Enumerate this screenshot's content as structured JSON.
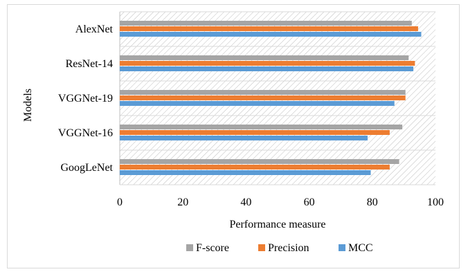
{
  "chart_data": {
    "type": "bar",
    "orientation": "horizontal",
    "title": "",
    "xlabel": "Performance measure",
    "ylabel": "Models",
    "xlim": [
      0,
      100
    ],
    "x_ticks": [
      "0",
      "20",
      "40",
      "60",
      "80",
      "100"
    ],
    "categories": [
      "AlexNet",
      "ResNet-14",
      "VGGNet-19",
      "VGGNet-16",
      "GoogLeNet"
    ],
    "series": [
      {
        "name": "F-score",
        "color": "#a5a5a5",
        "values": [
          92.5,
          91.5,
          90.5,
          89.5,
          88.5
        ]
      },
      {
        "name": "Precision",
        "color": "#ed7d31",
        "values": [
          94.5,
          93.5,
          90.5,
          85.5,
          85.5
        ]
      },
      {
        "name": "MCC",
        "color": "#5b9bd5",
        "values": [
          95.5,
          93,
          87,
          78.5,
          79.5
        ]
      }
    ],
    "grid": true,
    "legend_position": "bottom",
    "background_pattern": "diagonal-hatch"
  }
}
